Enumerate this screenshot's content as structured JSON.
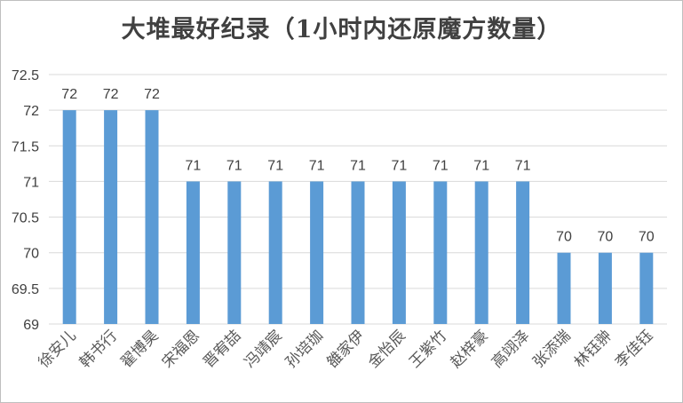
{
  "chart_data": {
    "type": "bar",
    "title": "大堆最好纪录（1小时内还原魔方数量）",
    "categories": [
      "徐安儿",
      "韩书行",
      "翟博昊",
      "宋福恩",
      "晋宥喆",
      "冯靖宸",
      "孙培珈",
      "雒家伊",
      "金怡辰",
      "王紫竹",
      "赵梓豪",
      "高翊泽",
      "张添瑞",
      "林钰翀",
      "李佳钰"
    ],
    "values": [
      72,
      72,
      72,
      71,
      71,
      71,
      71,
      71,
      71,
      71,
      71,
      71,
      70,
      70,
      70
    ],
    "ylim": [
      69,
      72.5
    ],
    "yticks": [
      "69",
      "69.5",
      "70",
      "70.5",
      "71",
      "71.5",
      "72",
      "72.5"
    ],
    "grid": true,
    "bar_color": "#5b9bd5",
    "grid_color": "#d9d9d9"
  }
}
